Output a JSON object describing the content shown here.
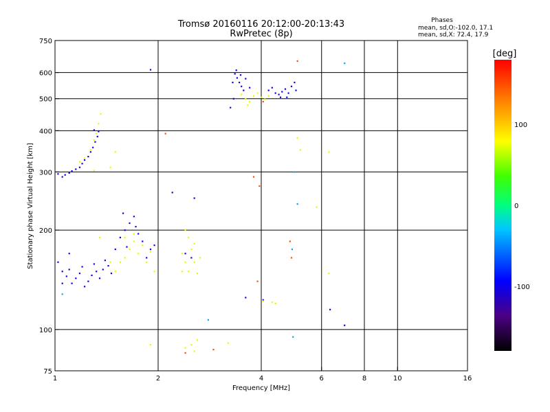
{
  "chart_data": {
    "type": "scatter",
    "title": "Tromsø 20160116 20:12:00-20:13:43",
    "subtitle": "RwPretec (8p)",
    "xlabel": "Frequency [MHz]",
    "ylabel": "Stationary phase Virtual Height [km]",
    "x_scale": "log2",
    "y_scale": "log",
    "xlim": [
      1,
      16
    ],
    "ylim": [
      75,
      750
    ],
    "x_ticks": [
      1,
      2,
      4,
      6,
      8,
      10,
      16
    ],
    "x_tick_labels": [
      "1",
      "2",
      "4",
      "6",
      "8",
      "10",
      "16"
    ],
    "y_ticks": [
      75,
      100,
      200,
      300,
      400,
      500,
      600,
      750
    ],
    "y_tick_labels": [
      "75",
      "100",
      "200",
      "300",
      "400",
      "500",
      "600",
      "750"
    ],
    "x_gridlines": [
      2,
      4,
      6,
      8,
      10
    ],
    "y_gridlines": [
      100,
      200,
      300,
      400,
      500,
      600
    ],
    "grid": true,
    "stats": {
      "heading": "Phases",
      "line1": "mean, sd,O:-102.0, 17.1",
      "line2": "mean, sd,X: 72.4, 17.9"
    },
    "colorbar": {
      "label": "[deg]",
      "range": [
        -180,
        180
      ],
      "ticks": [
        100,
        0,
        -100
      ],
      "tick_labels": [
        "100",
        "0",
        "-100"
      ]
    },
    "series": [
      {
        "description": "O-mode F-region echoes (blue, near -100 deg)",
        "phase_deg": -102,
        "points": [
          [
            1.02,
            296
          ],
          [
            1.05,
            290
          ],
          [
            1.07,
            294
          ],
          [
            1.1,
            298
          ],
          [
            1.12,
            302
          ],
          [
            1.15,
            306
          ],
          [
            1.18,
            310
          ],
          [
            1.2,
            318
          ],
          [
            1.22,
            326
          ],
          [
            1.25,
            334
          ],
          [
            1.27,
            345
          ],
          [
            1.29,
            356
          ],
          [
            1.31,
            370
          ],
          [
            1.33,
            384
          ],
          [
            1.34,
            398
          ],
          [
            1.3,
            402
          ],
          [
            3.35,
            595
          ],
          [
            3.4,
            578
          ],
          [
            3.45,
            560
          ],
          [
            3.5,
            545
          ],
          [
            3.55,
            530
          ],
          [
            3.38,
            610
          ],
          [
            3.48,
            590
          ],
          [
            3.6,
            575
          ],
          [
            3.3,
            560
          ],
          [
            3.7,
            540
          ],
          [
            3.25,
            470
          ],
          [
            3.32,
            500
          ],
          [
            4.3,
            540
          ],
          [
            4.4,
            520
          ],
          [
            4.5,
            515
          ],
          [
            4.6,
            525
          ],
          [
            4.7,
            535
          ],
          [
            4.8,
            520
          ],
          [
            4.9,
            545
          ],
          [
            5.0,
            560
          ],
          [
            4.2,
            530
          ],
          [
            4.55,
            505
          ],
          [
            4.75,
            505
          ],
          [
            5.05,
            530
          ],
          [
            1.02,
            160
          ],
          [
            1.05,
            150
          ],
          [
            1.08,
            145
          ],
          [
            1.1,
            152
          ],
          [
            1.12,
            138
          ],
          [
            1.15,
            143
          ],
          [
            1.18,
            148
          ],
          [
            1.2,
            155
          ],
          [
            1.22,
            135
          ],
          [
            1.25,
            140
          ],
          [
            1.28,
            146
          ],
          [
            1.3,
            158
          ],
          [
            1.32,
            150
          ],
          [
            1.35,
            143
          ],
          [
            1.38,
            152
          ],
          [
            1.4,
            162
          ],
          [
            1.43,
            156
          ],
          [
            1.46,
            148
          ],
          [
            1.05,
            138
          ],
          [
            1.1,
            170
          ],
          [
            1.5,
            175
          ],
          [
            1.55,
            190
          ],
          [
            1.6,
            200
          ],
          [
            1.65,
            210
          ],
          [
            1.7,
            220
          ],
          [
            1.75,
            195
          ],
          [
            1.8,
            185
          ],
          [
            1.85,
            165
          ],
          [
            1.9,
            175
          ],
          [
            1.95,
            180
          ],
          [
            1.58,
            225
          ],
          [
            1.72,
            205
          ],
          [
            1.62,
            178
          ],
          [
            2.4,
            170
          ],
          [
            2.5,
            165
          ],
          [
            2.55,
            250
          ],
          [
            2.2,
            260
          ],
          [
            3.6,
            125
          ],
          [
            4.05,
            123
          ],
          [
            6.35,
            115
          ],
          [
            7.0,
            103
          ],
          [
            1.9,
            612
          ]
        ]
      },
      {
        "description": "X-mode echoes (green-yellow, near +70 deg)",
        "phase_deg": 72,
        "points": [
          [
            1.22,
            330
          ],
          [
            1.27,
            350
          ],
          [
            1.3,
            375
          ],
          [
            1.32,
            392
          ],
          [
            1.34,
            420
          ],
          [
            1.36,
            450
          ],
          [
            1.18,
            322
          ],
          [
            3.5,
            515
          ],
          [
            3.6,
            500
          ],
          [
            3.7,
            490
          ],
          [
            3.8,
            510
          ],
          [
            3.9,
            520
          ],
          [
            4.0,
            505
          ],
          [
            4.1,
            498
          ],
          [
            4.2,
            510
          ],
          [
            3.65,
            478
          ],
          [
            1.55,
            160
          ],
          [
            1.6,
            165
          ],
          [
            1.65,
            175
          ],
          [
            1.7,
            185
          ],
          [
            1.75,
            170
          ],
          [
            1.8,
            180
          ],
          [
            1.85,
            160
          ],
          [
            1.9,
            172
          ],
          [
            1.95,
            150
          ],
          [
            1.7,
            195
          ],
          [
            1.6,
            190
          ],
          [
            1.5,
            150
          ],
          [
            1.45,
            160
          ],
          [
            2.35,
            170
          ],
          [
            2.4,
            160
          ],
          [
            2.45,
            150
          ],
          [
            2.5,
            175
          ],
          [
            2.55,
            160
          ],
          [
            2.6,
            148
          ],
          [
            2.45,
            190
          ],
          [
            2.4,
            200
          ],
          [
            2.55,
            182
          ],
          [
            2.65,
            165
          ],
          [
            2.35,
            150
          ],
          [
            2.4,
            88
          ],
          [
            2.5,
            90
          ],
          [
            2.55,
            86
          ],
          [
            2.6,
            93
          ],
          [
            1.9,
            90
          ],
          [
            3.2,
            91
          ],
          [
            4.05,
            122
          ],
          [
            4.3,
            121
          ],
          [
            4.4,
            120
          ],
          [
            5.1,
            380
          ],
          [
            5.2,
            350
          ],
          [
            6.3,
            148
          ],
          [
            6.3,
            345
          ],
          [
            5.8,
            235
          ],
          [
            1.3,
            303
          ],
          [
            1.5,
            345
          ],
          [
            1.45,
            310
          ],
          [
            1.35,
            190
          ]
        ]
      },
      {
        "description": "Scattered red/orange echoes (high phase)",
        "phase_deg": 150,
        "points": [
          [
            3.8,
            290
          ],
          [
            3.95,
            272
          ],
          [
            3.9,
            140
          ],
          [
            4.9,
            165
          ],
          [
            4.85,
            185
          ],
          [
            5.1,
            650
          ],
          [
            2.4,
            85
          ],
          [
            2.9,
            87
          ],
          [
            4.05,
            490
          ],
          [
            2.1,
            392
          ]
        ]
      },
      {
        "description": "Scattered cyan/teal echoes (low phase)",
        "phase_deg": -40,
        "points": [
          [
            5.1,
            240
          ],
          [
            5.0,
            300
          ],
          [
            4.95,
            95
          ],
          [
            7.0,
            640
          ],
          [
            2.8,
            107
          ],
          [
            1.05,
            128
          ],
          [
            4.92,
            175
          ]
        ]
      }
    ]
  }
}
